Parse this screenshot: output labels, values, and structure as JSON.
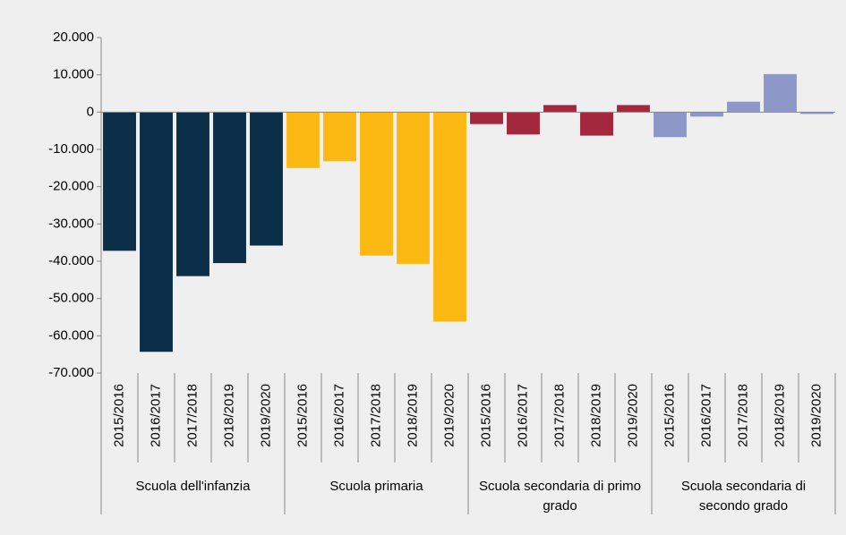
{
  "chart_data": {
    "type": "bar",
    "groups": [
      {
        "name": "Scuola dell'infanzia",
        "color": "#0b2f48",
        "categories": [
          "2015/2016",
          "2016/2017",
          "2017/2018",
          "2018/2019",
          "2019/2020"
        ],
        "values": [
          -37200,
          -64300,
          -44000,
          -40500,
          -35800
        ]
      },
      {
        "name": "Scuola primaria",
        "color": "#fdb913",
        "categories": [
          "2015/2016",
          "2016/2017",
          "2017/2018",
          "2018/2019",
          "2019/2020"
        ],
        "values": [
          -15000,
          -13200,
          -38500,
          -40700,
          -56200
        ]
      },
      {
        "name": "Scuola secondaria di primo grado",
        "color": "#a3283e",
        "categories": [
          "2015/2016",
          "2016/2017",
          "2017/2018",
          "2018/2019",
          "2019/2020"
        ],
        "values": [
          -3200,
          -6000,
          1900,
          -6300,
          1900
        ]
      },
      {
        "name": "Scuola secondaria di secondo grado",
        "color": "#8d98c8",
        "categories": [
          "2015/2016",
          "2016/2017",
          "2017/2018",
          "2018/2019",
          "2019/2020"
        ],
        "values": [
          -6700,
          -1200,
          2800,
          10200,
          -500
        ]
      }
    ],
    "ylim": [
      -70000,
      20000
    ],
    "yticks": [
      {
        "value": 20000,
        "label": "20.000"
      },
      {
        "value": 10000,
        "label": "10.000"
      },
      0,
      {
        "value": -10000,
        "label": "-10.000"
      },
      {
        "value": -20000,
        "label": "-20.000"
      },
      {
        "value": -30000,
        "label": "-30.000"
      },
      {
        "value": -40000,
        "label": "-40.000"
      },
      {
        "value": -50000,
        "label": "-50.000"
      },
      {
        "value": -60000,
        "label": "-60.000"
      },
      {
        "value": -70000,
        "label": "-70.000"
      }
    ],
    "grid": false
  }
}
